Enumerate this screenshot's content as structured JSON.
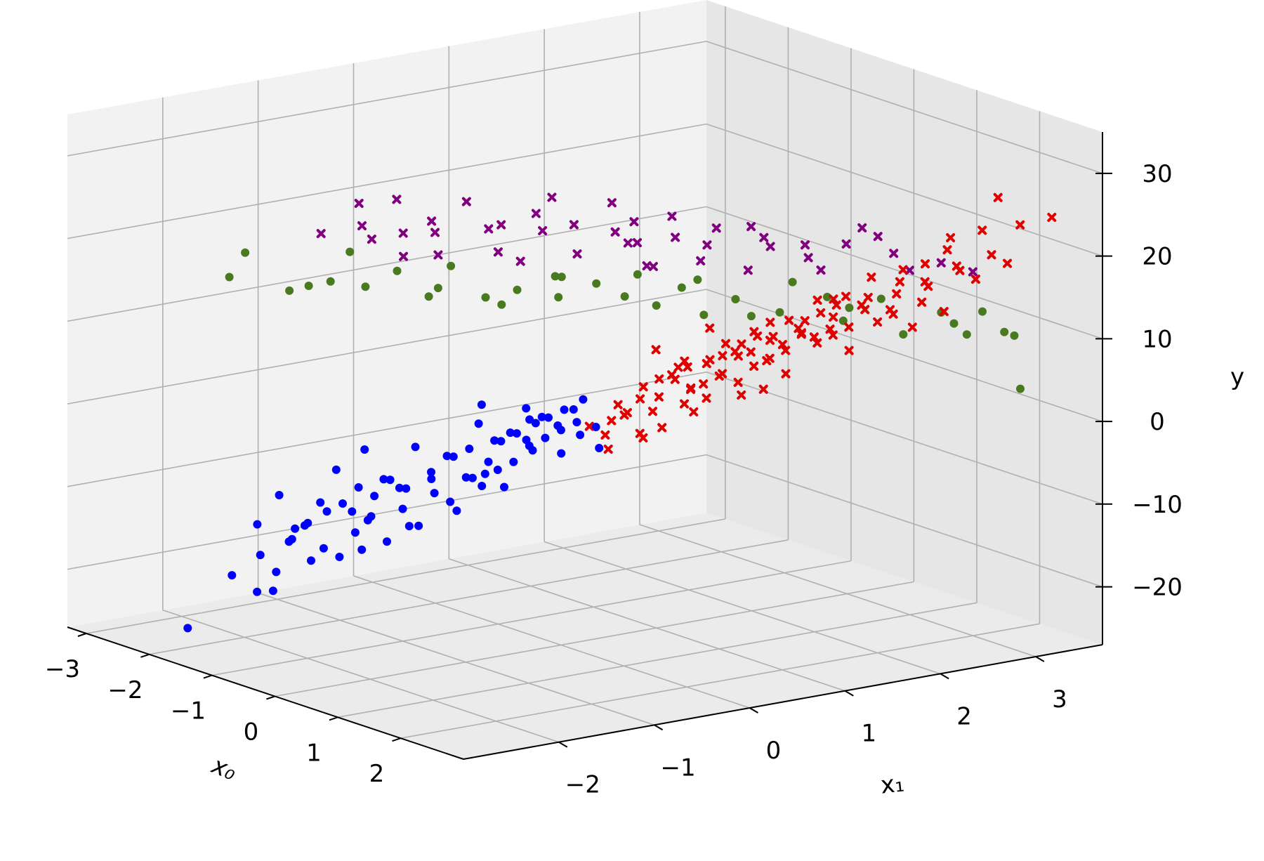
{
  "chart_data": {
    "type": "scatter",
    "projection": "3d",
    "title": "",
    "axes": {
      "x": {
        "label": "x₀",
        "label_style": "italic-math",
        "ticks": [
          "−3",
          "−2",
          "−1",
          "0",
          "1",
          "2"
        ],
        "tick_values": [
          -3,
          -2,
          -1,
          0,
          1,
          2
        ],
        "range": [
          -3.3,
          3.0
        ]
      },
      "y": {
        "label": "x₁",
        "ticks": [
          "−2",
          "−1",
          "0",
          "1",
          "2",
          "3"
        ],
        "tick_values": [
          -2,
          -1,
          0,
          1,
          2,
          3
        ],
        "range": [
          -3.0,
          3.7
        ]
      },
      "z": {
        "label": "y",
        "ticks": [
          "−20",
          "−10",
          "0",
          "10",
          "20",
          "30"
        ],
        "tick_values": [
          -20,
          -10,
          0,
          10,
          20,
          30
        ],
        "range": [
          -27,
          35
        ]
      }
    },
    "grid": true,
    "legend": "none",
    "series_styles": [
      {
        "id": "blue",
        "color": "#0000ff",
        "marker": "circle"
      },
      {
        "id": "red",
        "color": "#e00000",
        "marker": "x"
      },
      {
        "id": "green",
        "color": "#4a7a1f",
        "marker": "circle"
      },
      {
        "id": "purple",
        "color": "#800080",
        "marker": "x"
      }
    ],
    "points": {
      "green": [
        [
          -3.0,
          -1.5,
          13
        ],
        [
          -2.5,
          -1.2,
          12
        ],
        [
          -2.8,
          -0.8,
          11
        ],
        [
          -2.2,
          -0.6,
          12
        ],
        [
          -2.0,
          -0.4,
          14
        ],
        [
          -1.5,
          -0.3,
          13
        ],
        [
          -1.2,
          0.0,
          12
        ],
        [
          -2.6,
          -0.5,
          15
        ],
        [
          -1.0,
          0.2,
          13
        ],
        [
          -0.8,
          0.5,
          12
        ],
        [
          -0.5,
          0.7,
          14
        ],
        [
          -0.2,
          0.8,
          13
        ],
        [
          0.0,
          1.0,
          12
        ],
        [
          0.3,
          1.3,
          11
        ],
        [
          0.5,
          1.5,
          13
        ],
        [
          -1.8,
          -0.2,
          11
        ],
        [
          -0.7,
          0.4,
          15
        ],
        [
          -1.4,
          0.3,
          10
        ],
        [
          1.0,
          2.3,
          10
        ],
        [
          1.5,
          2.6,
          9
        ],
        [
          1.7,
          3.0,
          10
        ],
        [
          1.6,
          3.2,
          8
        ],
        [
          1.8,
          2.8,
          12
        ],
        [
          1.2,
          2.0,
          14
        ],
        [
          0.9,
          1.7,
          12
        ],
        [
          0.8,
          1.9,
          15
        ],
        [
          1.4,
          2.1,
          13
        ],
        [
          2.0,
          3.1,
          12
        ],
        [
          0.2,
          1.3,
          15
        ],
        [
          -0.3,
          1.0,
          15
        ],
        [
          -2.9,
          -1.4,
          16
        ],
        [
          -2.3,
          -0.9,
          13
        ],
        [
          2.3,
          3.3,
          3
        ],
        [
          1.9,
          3.5,
          8
        ],
        [
          0.6,
          1.6,
          11
        ],
        [
          0.1,
          1.2,
          14
        ],
        [
          -0.9,
          0.6,
          14
        ],
        [
          -1.6,
          -0.1,
          15
        ],
        [
          2.5,
          3.0,
          11
        ],
        [
          1.3,
          2.5,
          13
        ]
      ],
      "purple": [
        [
          -1.8,
          -0.9,
          21
        ],
        [
          -1.6,
          -0.6,
          20
        ],
        [
          -1.3,
          -0.5,
          22
        ],
        [
          -1.0,
          -0.1,
          21
        ],
        [
          -0.7,
          0.2,
          23
        ],
        [
          -0.4,
          0.4,
          22
        ],
        [
          -0.2,
          0.7,
          21
        ],
        [
          0.0,
          0.8,
          20
        ],
        [
          0.3,
          1.0,
          21
        ],
        [
          0.5,
          1.3,
          22
        ],
        [
          0.8,
          1.6,
          21
        ],
        [
          1.0,
          1.9,
          20
        ],
        [
          1.2,
          2.2,
          20
        ],
        [
          1.5,
          2.5,
          19
        ],
        [
          1.8,
          2.8,
          18
        ],
        [
          -1.5,
          -0.3,
          17
        ],
        [
          -1.0,
          0.0,
          18
        ],
        [
          -0.5,
          0.5,
          18
        ],
        [
          0.0,
          0.9,
          17
        ],
        [
          0.4,
          1.2,
          18
        ],
        [
          0.7,
          1.5,
          17
        ],
        [
          1.1,
          2.0,
          17
        ],
        [
          -2.0,
          -0.8,
          23
        ],
        [
          -1.2,
          -0.2,
          24
        ],
        [
          -0.6,
          0.3,
          25
        ],
        [
          -0.1,
          0.6,
          25
        ],
        [
          0.4,
          0.9,
          24
        ],
        [
          0.9,
          1.4,
          23
        ],
        [
          1.3,
          2.3,
          22
        ],
        [
          -2.3,
          -1.0,
          19
        ],
        [
          -2.1,
          -0.6,
          18
        ],
        [
          -1.7,
          -0.2,
          19
        ],
        [
          -0.9,
          0.4,
          20
        ],
        [
          -0.3,
          0.9,
          19
        ],
        [
          0.2,
          1.4,
          19
        ],
        [
          0.6,
          1.8,
          19
        ],
        [
          1.6,
          2.6,
          17
        ],
        [
          2.0,
          3.0,
          17
        ],
        [
          -1.9,
          -0.4,
          16
        ],
        [
          -1.1,
          0.3,
          16
        ],
        [
          -0.2,
          1.1,
          16
        ],
        [
          0.9,
          2.0,
          18
        ],
        [
          1.4,
          2.4,
          21
        ],
        [
          0.1,
          0.7,
          23
        ],
        [
          -0.8,
          -0.1,
          22
        ],
        [
          -1.4,
          -0.8,
          25
        ]
      ],
      "blue": [
        [
          -2.0,
          -1.7,
          -22
        ],
        [
          -1.9,
          -1.9,
          -17
        ],
        [
          -1.8,
          -1.8,
          -19
        ],
        [
          -1.7,
          -1.7,
          -15
        ],
        [
          -1.6,
          -1.6,
          -13
        ],
        [
          -1.5,
          -1.5,
          -16
        ],
        [
          -1.4,
          -1.4,
          -17
        ],
        [
          -1.3,
          -1.3,
          -14
        ],
        [
          -1.2,
          -1.2,
          -12
        ],
        [
          -1.1,
          -1.1,
          -15
        ],
        [
          -1.0,
          -1.0,
          -11
        ],
        [
          -0.9,
          -0.9,
          -13
        ],
        [
          -0.8,
          -0.8,
          -9
        ],
        [
          -0.7,
          -0.7,
          -10
        ],
        [
          -0.6,
          -0.6,
          -7
        ],
        [
          -0.5,
          -0.5,
          -8
        ],
        [
          -0.4,
          -0.4,
          -6
        ],
        [
          -0.3,
          -0.3,
          -5
        ],
        [
          -0.2,
          -0.2,
          -3
        ],
        [
          -0.1,
          -0.1,
          -2
        ],
        [
          0.0,
          0.0,
          -1
        ],
        [
          0.1,
          0.1,
          0
        ],
        [
          -1.6,
          -1.4,
          -12
        ],
        [
          -1.4,
          -1.6,
          -10
        ],
        [
          -1.2,
          -1.0,
          -8
        ],
        [
          -1.0,
          -1.2,
          -7
        ],
        [
          -0.8,
          -0.6,
          -5
        ],
        [
          -0.6,
          -0.8,
          -4
        ],
        [
          -0.4,
          -0.2,
          -2
        ],
        [
          -0.2,
          -0.4,
          -1
        ],
        [
          0.0,
          -0.2,
          1
        ],
        [
          0.2,
          0.0,
          2
        ],
        [
          -2.2,
          -2.0,
          -20
        ],
        [
          -1.8,
          -1.5,
          -14
        ],
        [
          -1.5,
          -1.8,
          -13
        ],
        [
          -1.1,
          -0.9,
          -9
        ],
        [
          -0.9,
          -1.1,
          -8
        ],
        [
          -0.5,
          -0.3,
          -3
        ],
        [
          -0.3,
          -0.5,
          -2
        ],
        [
          -0.1,
          0.1,
          1
        ],
        [
          -1.3,
          -1.1,
          -10
        ],
        [
          -1.2,
          -1.4,
          -11
        ],
        [
          -0.7,
          -0.9,
          -6
        ],
        [
          -0.7,
          -0.5,
          -4
        ],
        [
          -0.2,
          0.0,
          0
        ],
        [
          0.1,
          -0.1,
          0
        ],
        [
          -1.7,
          -1.5,
          -18
        ],
        [
          -1.5,
          -1.3,
          -11
        ],
        [
          -1.9,
          -1.6,
          -16
        ],
        [
          -1.0,
          -0.7,
          -8
        ],
        [
          -0.6,
          -0.4,
          -7
        ],
        [
          -0.3,
          -0.1,
          -4
        ],
        [
          0.0,
          0.2,
          -2
        ],
        [
          -2.6,
          -2.2,
          -27
        ],
        [
          -0.4,
          -0.6,
          0
        ],
        [
          -0.5,
          0.0,
          -1
        ],
        [
          -0.8,
          -1.0,
          -3
        ],
        [
          -1.3,
          -1.5,
          -6
        ],
        [
          0.2,
          0.1,
          3
        ],
        [
          -0.1,
          -0.3,
          2
        ],
        [
          -2.1,
          -1.8,
          -14
        ],
        [
          -1.8,
          -2.0,
          -21
        ],
        [
          -1.6,
          -1.9,
          -9
        ],
        [
          -1.0,
          -1.4,
          -3
        ],
        [
          -0.2,
          -0.7,
          3
        ],
        [
          0.0,
          0.4,
          -4
        ],
        [
          -0.6,
          -0.2,
          -9
        ],
        [
          -0.9,
          -0.5,
          -12
        ],
        [
          -1.2,
          -0.8,
          -14
        ],
        [
          -0.3,
          0.2,
          -5
        ],
        [
          0.1,
          0.3,
          -1
        ],
        [
          -1.4,
          -1.2,
          -9
        ],
        [
          -0.1,
          -0.2,
          0
        ],
        [
          -0.4,
          -0.1,
          -3
        ],
        [
          -0.7,
          -0.3,
          -6
        ],
        [
          -1.1,
          -1.3,
          -12
        ],
        [
          -1.5,
          -1.1,
          -17
        ],
        [
          -0.8,
          -0.4,
          -8
        ]
      ],
      "red": [
        [
          0.3,
          0.4,
          2
        ],
        [
          0.4,
          0.6,
          4
        ],
        [
          0.5,
          0.5,
          3
        ],
        [
          0.6,
          0.8,
          5
        ],
        [
          0.7,
          0.7,
          6
        ],
        [
          0.8,
          1.0,
          7
        ],
        [
          0.9,
          0.9,
          5
        ],
        [
          1.0,
          1.2,
          8
        ],
        [
          1.1,
          1.1,
          9
        ],
        [
          1.2,
          1.4,
          10
        ],
        [
          1.3,
          1.3,
          8
        ],
        [
          1.4,
          1.6,
          11
        ],
        [
          1.5,
          1.5,
          12
        ],
        [
          1.6,
          1.8,
          13
        ],
        [
          1.7,
          1.7,
          12
        ],
        [
          1.8,
          2.0,
          14
        ],
        [
          1.9,
          1.9,
          15
        ],
        [
          2.0,
          2.2,
          16
        ],
        [
          2.1,
          2.1,
          14
        ],
        [
          2.2,
          2.4,
          17
        ],
        [
          2.3,
          2.3,
          18
        ],
        [
          2.4,
          2.6,
          19
        ],
        [
          2.5,
          2.5,
          20
        ],
        [
          2.6,
          2.8,
          21
        ],
        [
          0.5,
          0.9,
          6
        ],
        [
          0.7,
          1.1,
          7
        ],
        [
          0.9,
          1.3,
          9
        ],
        [
          1.1,
          1.5,
          10
        ],
        [
          1.3,
          1.7,
          12
        ],
        [
          1.5,
          1.9,
          14
        ],
        [
          1.7,
          2.1,
          15
        ],
        [
          1.9,
          2.3,
          17
        ],
        [
          0.6,
          0.3,
          2
        ],
        [
          0.8,
          0.5,
          4
        ],
        [
          1.0,
          0.7,
          5
        ],
        [
          1.2,
          0.9,
          7
        ],
        [
          1.4,
          1.1,
          8
        ],
        [
          1.6,
          1.3,
          10
        ],
        [
          1.8,
          1.5,
          11
        ],
        [
          2.0,
          1.7,
          13
        ],
        [
          0.4,
          0.2,
          -1
        ],
        [
          0.6,
          0.1,
          -2
        ],
        [
          0.8,
          0.3,
          0
        ],
        [
          1.0,
          0.4,
          1
        ],
        [
          1.2,
          0.6,
          3
        ],
        [
          0.9,
          1.6,
          11
        ],
        [
          1.3,
          2.0,
          14
        ],
        [
          2.1,
          2.7,
          22
        ],
        [
          2.3,
          2.9,
          23
        ],
        [
          2.6,
          3.1,
          24
        ],
        [
          2.8,
          3.3,
          25
        ],
        [
          2.4,
          3.0,
          27
        ],
        [
          2.7,
          2.9,
          20
        ],
        [
          1.0,
          1.0,
          6
        ],
        [
          1.2,
          1.2,
          9
        ],
        [
          1.4,
          1.4,
          10
        ],
        [
          1.6,
          1.6,
          11
        ],
        [
          1.1,
          0.8,
          4
        ],
        [
          1.3,
          1.0,
          6
        ],
        [
          1.5,
          1.2,
          9
        ],
        [
          0.7,
          0.5,
          2
        ],
        [
          0.9,
          0.7,
          3
        ],
        [
          1.7,
          1.4,
          12
        ],
        [
          2.2,
          2.0,
          15
        ],
        [
          2.4,
          2.2,
          16
        ],
        [
          0.5,
          0.7,
          5
        ],
        [
          0.6,
          0.9,
          7
        ],
        [
          0.8,
          1.2,
          9
        ],
        [
          1.0,
          1.4,
          10
        ],
        [
          1.2,
          1.6,
          12
        ],
        [
          1.4,
          1.8,
          13
        ],
        [
          2.0,
          2.5,
          19
        ],
        [
          2.2,
          2.6,
          21
        ],
        [
          2.5,
          2.7,
          18
        ],
        [
          1.8,
          2.4,
          18
        ],
        [
          1.6,
          2.2,
          17
        ],
        [
          0.3,
          0.1,
          0
        ],
        [
          0.5,
          0.2,
          1
        ],
        [
          0.7,
          0.9,
          4
        ],
        [
          1.9,
          1.6,
          12
        ],
        [
          1.1,
          1.3,
          11
        ],
        [
          0.8,
          0.8,
          7
        ],
        [
          1.3,
          1.5,
          6
        ],
        [
          0.9,
          1.1,
          8
        ],
        [
          1.5,
          1.7,
          15
        ],
        [
          1.7,
          1.9,
          9
        ],
        [
          2.1,
          2.3,
          12
        ],
        [
          0.6,
          0.6,
          9
        ],
        [
          1.0,
          0.9,
          12
        ],
        [
          1.4,
          1.2,
          5
        ],
        [
          0.4,
          0.4,
          1
        ],
        [
          2.3,
          2.5,
          14
        ],
        [
          1.2,
          1.1,
          4
        ],
        [
          0.7,
          0.4,
          -1
        ],
        [
          1.8,
          1.8,
          16
        ],
        [
          2.0,
          2.0,
          13
        ]
      ]
    }
  }
}
